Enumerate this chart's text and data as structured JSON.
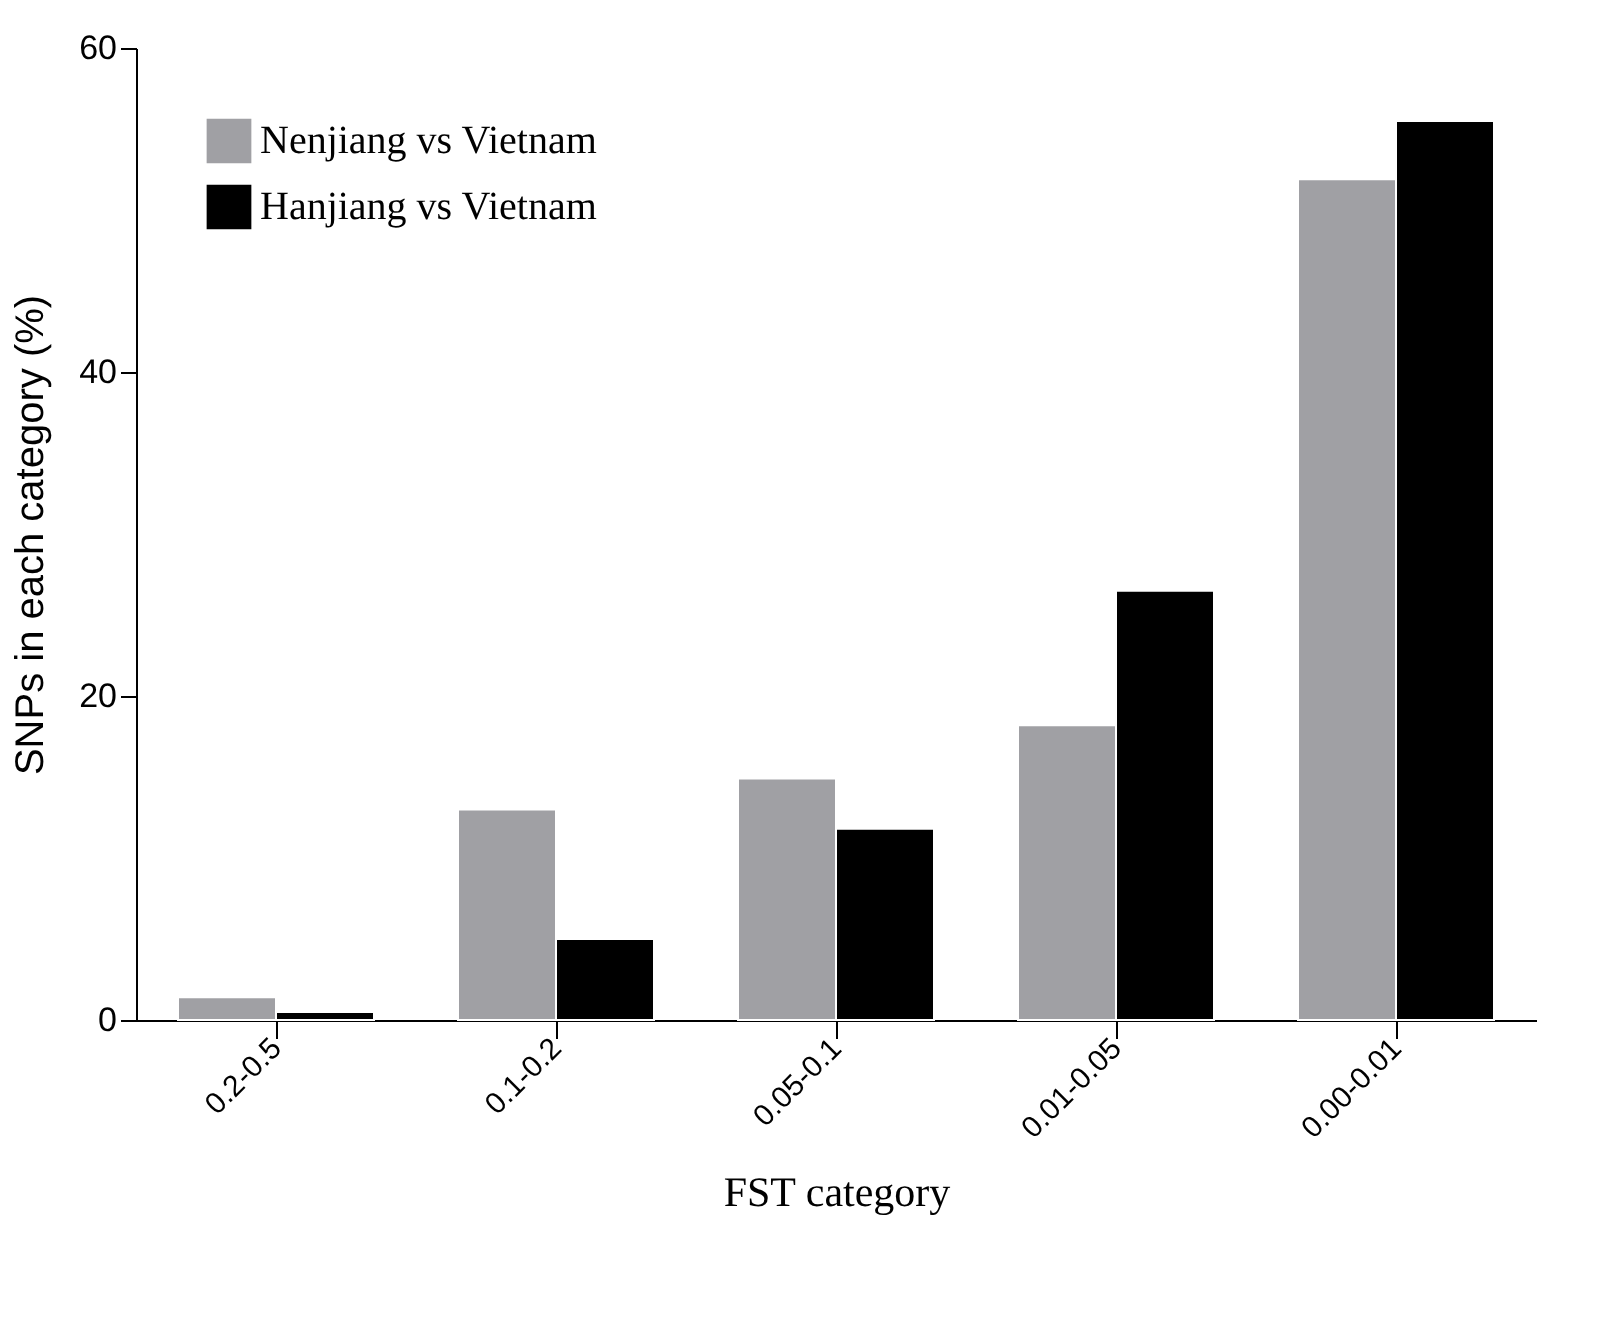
{
  "chart_data": {
    "type": "bar",
    "xlabel": "FST category",
    "ylabel": "SNPs in each category (%)",
    "categories": [
      "0.2-0.5",
      "0.1-0.2",
      "0.05-0.1",
      "0.01-0.05",
      "0.00-0.01"
    ],
    "series": [
      {
        "name": "Nenjiang vs Vietnam",
        "color": "#a0a0a4",
        "values": [
          1.4,
          13.0,
          14.9,
          18.2,
          51.9
        ]
      },
      {
        "name": "Hanjiang vs Vietnam",
        "color": "#000000",
        "values": [
          0.5,
          5.0,
          11.8,
          26.5,
          55.5
        ]
      }
    ],
    "ylim": [
      0,
      60
    ],
    "yticks": [
      0,
      20,
      40,
      60
    ],
    "grid": false,
    "legend": "top left"
  }
}
